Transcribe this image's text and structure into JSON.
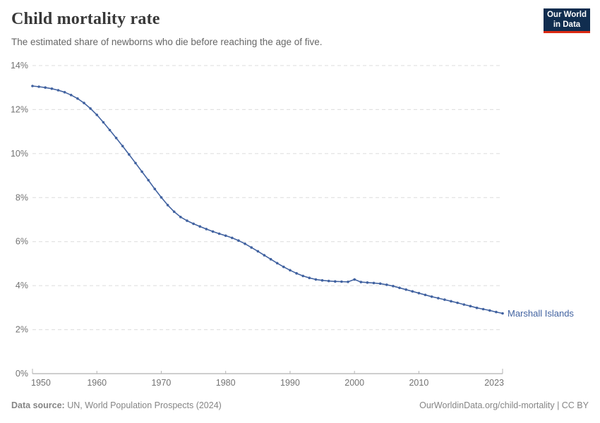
{
  "header": {
    "title": "Child mortality rate",
    "subtitle": "The estimated share of newborns who die before reaching the age of five."
  },
  "logo": {
    "line1": "Our World",
    "line2": "in Data",
    "bg_color": "#102d4f",
    "accent_color": "#dc2a12"
  },
  "footer": {
    "source_label": "Data source:",
    "source_value": " UN, World Population Prospects (2024)",
    "link": "OurWorldinData.org/child-mortality | CC BY"
  },
  "chart_data": {
    "type": "line",
    "title": "Child mortality rate",
    "subtitle": "The estimated share of newborns who die before reaching the age of five.",
    "series_label": "Marshall Islands",
    "color": "#4162a0",
    "grid": "dashed-horizontal",
    "legend_position": "end-of-line",
    "xlabel": "",
    "ylabel": "",
    "y_suffix": "%",
    "xlim": [
      1950,
      2023
    ],
    "ylim": [
      0,
      14
    ],
    "xticks": [
      1950,
      1960,
      1970,
      1980,
      1990,
      2000,
      2010,
      2023
    ],
    "yticks": [
      0,
      2,
      4,
      6,
      8,
      10,
      12,
      14
    ],
    "x": [
      1950,
      1951,
      1952,
      1953,
      1954,
      1955,
      1956,
      1957,
      1958,
      1959,
      1960,
      1961,
      1962,
      1963,
      1964,
      1965,
      1966,
      1967,
      1968,
      1969,
      1970,
      1971,
      1972,
      1973,
      1974,
      1975,
      1976,
      1977,
      1978,
      1979,
      1980,
      1981,
      1982,
      1983,
      1984,
      1985,
      1986,
      1987,
      1988,
      1989,
      1990,
      1991,
      1992,
      1993,
      1994,
      1995,
      1996,
      1997,
      1998,
      1999,
      2000,
      2001,
      2002,
      2003,
      2004,
      2005,
      2006,
      2007,
      2008,
      2009,
      2010,
      2011,
      2012,
      2013,
      2014,
      2015,
      2016,
      2017,
      2018,
      2019,
      2020,
      2021,
      2022,
      2023
    ],
    "values": [
      13.07,
      13.04,
      13.0,
      12.95,
      12.88,
      12.79,
      12.66,
      12.5,
      12.3,
      12.05,
      11.76,
      11.42,
      11.07,
      10.71,
      10.34,
      9.96,
      9.57,
      9.18,
      8.79,
      8.39,
      8.01,
      7.66,
      7.36,
      7.12,
      6.95,
      6.81,
      6.69,
      6.57,
      6.46,
      6.36,
      6.27,
      6.17,
      6.05,
      5.9,
      5.73,
      5.56,
      5.38,
      5.2,
      5.02,
      4.85,
      4.7,
      4.56,
      4.44,
      4.35,
      4.28,
      4.24,
      4.21,
      4.19,
      4.18,
      4.17,
      4.28,
      4.16,
      4.14,
      4.12,
      4.09,
      4.04,
      3.98,
      3.9,
      3.82,
      3.74,
      3.66,
      3.58,
      3.5,
      3.43,
      3.36,
      3.29,
      3.22,
      3.14,
      3.07,
      2.99,
      2.93,
      2.87,
      2.8,
      2.74
    ]
  }
}
